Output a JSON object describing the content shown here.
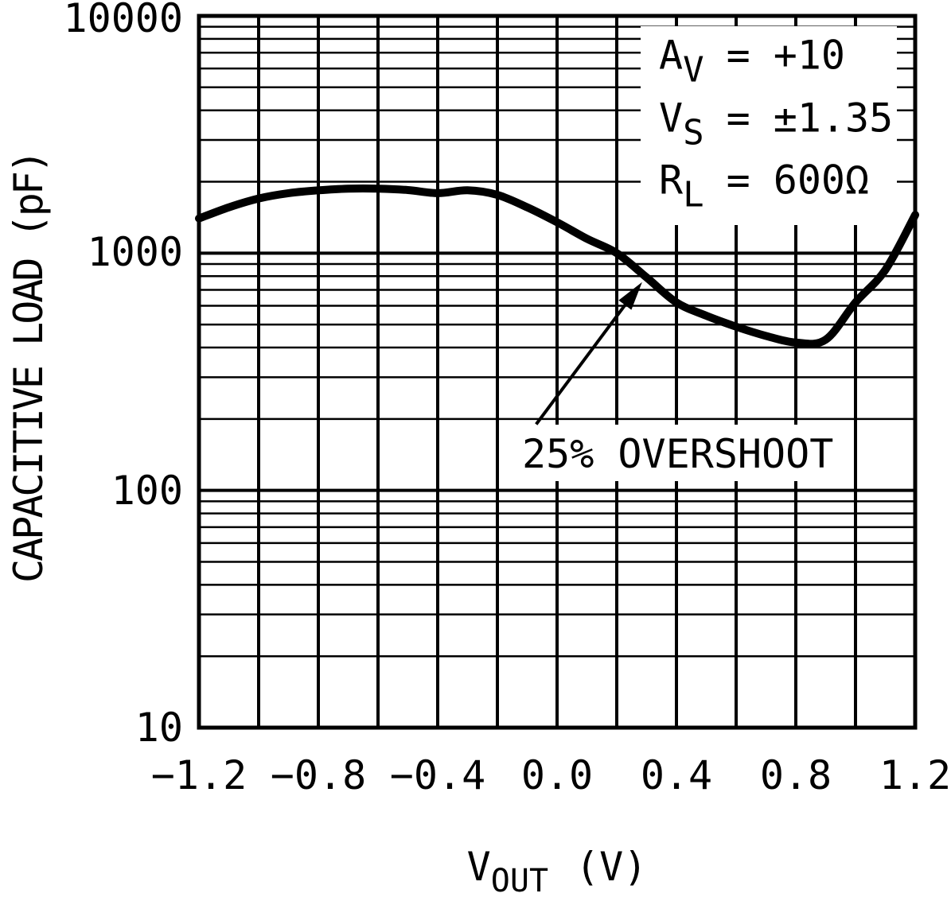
{
  "chart_data": {
    "type": "line",
    "title": "",
    "ylabel": "CAPACITIVE LOAD (pF)",
    "xlabel": {
      "base": "V",
      "sub": "OUT",
      "rest": "(V)"
    },
    "x_ticks": [
      "−1.2",
      "−0.8",
      "−0.4",
      "0.0",
      "0.4",
      "0.8",
      "1.2"
    ],
    "y_ticks": [
      "10000",
      "1000",
      "100",
      "10"
    ],
    "xlim": [
      -1.2,
      1.2
    ],
    "ylim": [
      10,
      10000
    ],
    "y_scale": "log",
    "grid": {
      "x_step": 0.2,
      "y_minor_multiples": [
        2,
        3,
        4,
        5,
        6,
        7,
        8,
        9
      ],
      "grid_on": true,
      "color": "#000000"
    },
    "series": [
      {
        "name": "capacitive load for 25% overshoot",
        "x": [
          -1.2,
          -1.1,
          -1.0,
          -0.9,
          -0.8,
          -0.7,
          -0.6,
          -0.5,
          -0.4,
          -0.3,
          -0.2,
          -0.1,
          0.0,
          0.1,
          0.2,
          0.3,
          0.4,
          0.5,
          0.6,
          0.7,
          0.8,
          0.9,
          1.0,
          1.1,
          1.2
        ],
        "y_pF": [
          1400,
          1560,
          1700,
          1790,
          1840,
          1870,
          1870,
          1845,
          1790,
          1840,
          1760,
          1560,
          1350,
          1150,
          1000,
          790,
          620,
          545,
          490,
          448,
          420,
          432,
          620,
          850,
          1450
        ]
      }
    ],
    "conditions": [
      {
        "base": "A",
        "sub": "V",
        "equals": "=",
        "value": "+10"
      },
      {
        "base": "V",
        "sub": "S",
        "equals": "=",
        "value": "±1.35"
      },
      {
        "base": "R",
        "sub": "L",
        "equals": "=",
        "value": "600Ω"
      }
    ],
    "annotation": {
      "label": "25% OVERSHOOT",
      "arrow_from": {
        "v": -0.07,
        "pf": 190
      },
      "arrow_to": {
        "v": 0.285,
        "pf": 755
      }
    },
    "ink_color": "#000000",
    "background_color": "#ffffff"
  }
}
